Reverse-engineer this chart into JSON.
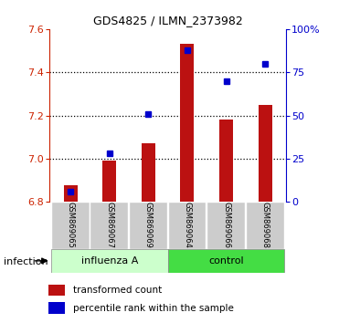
{
  "title": "GDS4825 / ILMN_2373982",
  "samples": [
    "GSM869065",
    "GSM869067",
    "GSM869069",
    "GSM869064",
    "GSM869066",
    "GSM869068"
  ],
  "group_labels": [
    "influenza A",
    "control"
  ],
  "bar_color": "#bb1111",
  "dot_color": "#0000cc",
  "bar_bottom": 6.8,
  "transformed_counts": [
    6.875,
    6.99,
    7.07,
    7.53,
    7.18,
    7.25
  ],
  "percentile_ranks": [
    6,
    28,
    51,
    88,
    70,
    80
  ],
  "ylim_left": [
    6.8,
    7.6
  ],
  "ylim_right": [
    0,
    100
  ],
  "yticks_left": [
    6.8,
    7.0,
    7.2,
    7.4,
    7.6
  ],
  "yticks_right": [
    0,
    25,
    50,
    75,
    100
  ],
  "ytick_labels_right": [
    "0",
    "25",
    "50",
    "75",
    "100%"
  ],
  "infection_label": "infection",
  "legend_bar_label": "transformed count",
  "legend_dot_label": "percentile rank within the sample",
  "left_axis_color": "#cc2200",
  "right_axis_color": "#0000cc",
  "influenza_color": "#ccffcc",
  "control_color": "#44dd44",
  "sample_box_color": "#cccccc",
  "bg_color": "#ffffff"
}
